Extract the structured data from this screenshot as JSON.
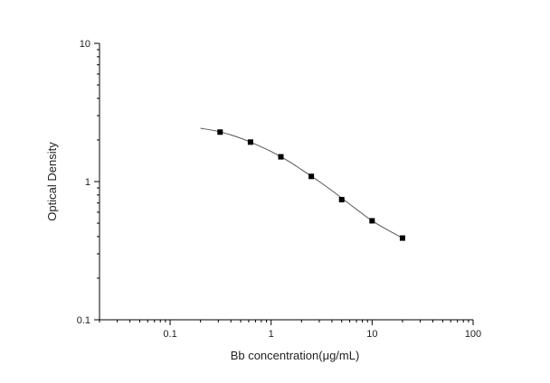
{
  "chart_data": {
    "type": "scatter",
    "title": "",
    "xlabel": "Bb concentration(μg/mL)",
    "ylabel": "Optical Density",
    "xscale": "log",
    "yscale": "log",
    "xlim": [
      0.02,
      100
    ],
    "ylim": [
      0.1,
      10
    ],
    "x_tick_labels": [
      "0.1",
      "1",
      "10",
      "100"
    ],
    "y_tick_labels": [
      "0.1",
      "1",
      "10"
    ],
    "grid": false,
    "legend": "none",
    "series": [
      {
        "marker": "square",
        "x": [
          0.3125,
          0.625,
          1.25,
          2.5,
          5,
          10,
          20
        ],
        "y": [
          2.28,
          1.93,
          1.51,
          1.09,
          0.74,
          0.52,
          0.39
        ]
      }
    ],
    "fit_curve": [
      [
        0.2,
        2.43
      ],
      [
        0.3125,
        2.29
      ],
      [
        0.5,
        2.06
      ],
      [
        0.75,
        1.82
      ],
      [
        1.0,
        1.65
      ],
      [
        1.5,
        1.4
      ],
      [
        2.0,
        1.22
      ],
      [
        3.0,
        1.0
      ],
      [
        4.0,
        0.86
      ],
      [
        5.0,
        0.76
      ],
      [
        7.0,
        0.63
      ],
      [
        10,
        0.52
      ],
      [
        14,
        0.45
      ],
      [
        20,
        0.39
      ]
    ],
    "colors": {
      "axis": "#000000",
      "marker": "#000000",
      "curve": "#555555"
    }
  }
}
